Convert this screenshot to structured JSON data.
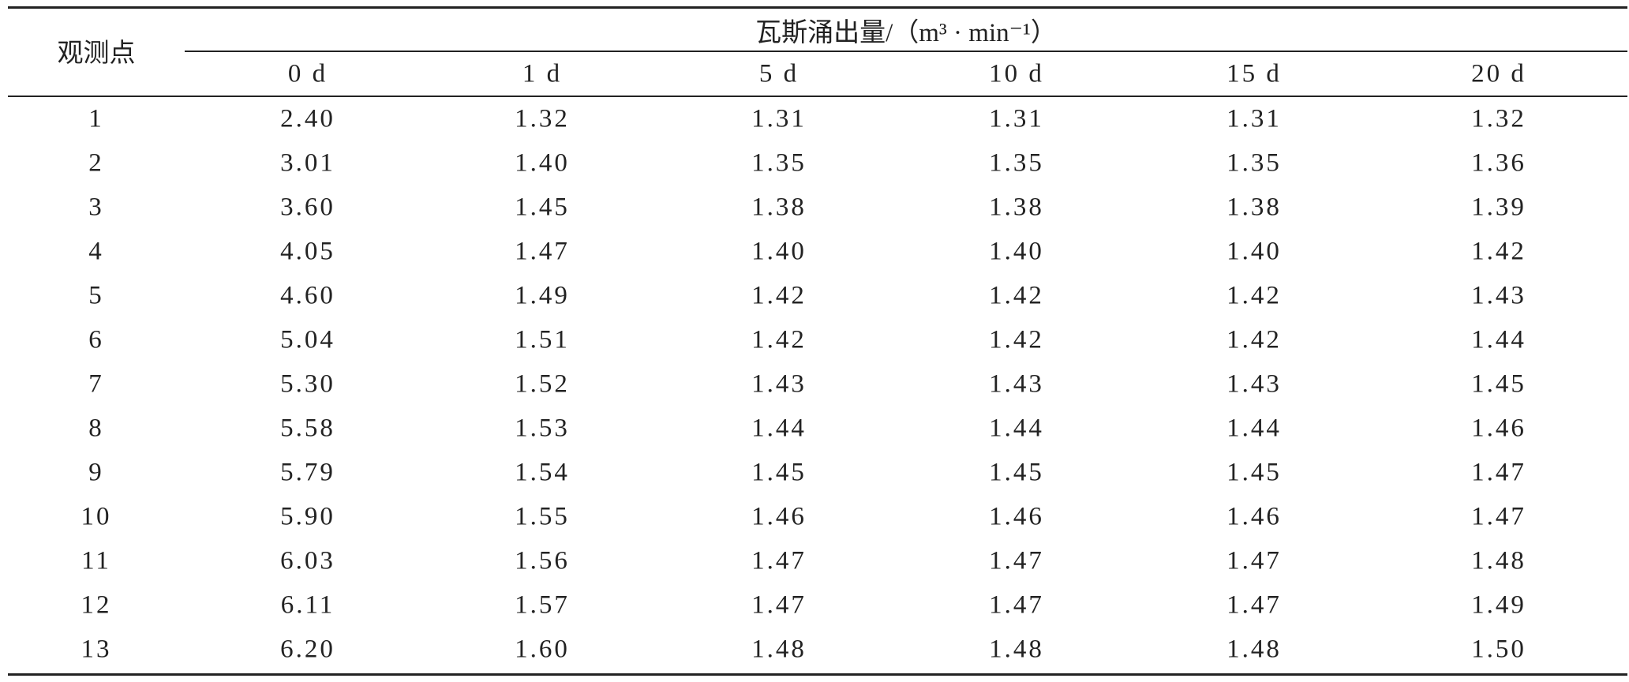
{
  "table": {
    "header": {
      "row_label": "观测点",
      "group": "瓦斯涌出量/（m³ · min⁻¹）",
      "columns": [
        "0 d",
        "1 d",
        "5 d",
        "10 d",
        "15 d",
        "20 d"
      ]
    },
    "rows": [
      [
        "1",
        "2.40",
        "1.32",
        "1.31",
        "1.31",
        "1.31",
        "1.32"
      ],
      [
        "2",
        "3.01",
        "1.40",
        "1.35",
        "1.35",
        "1.35",
        "1.36"
      ],
      [
        "3",
        "3.60",
        "1.45",
        "1.38",
        "1.38",
        "1.38",
        "1.39"
      ],
      [
        "4",
        "4.05",
        "1.47",
        "1.40",
        "1.40",
        "1.40",
        "1.42"
      ],
      [
        "5",
        "4.60",
        "1.49",
        "1.42",
        "1.42",
        "1.42",
        "1.43"
      ],
      [
        "6",
        "5.04",
        "1.51",
        "1.42",
        "1.42",
        "1.42",
        "1.44"
      ],
      [
        "7",
        "5.30",
        "1.52",
        "1.43",
        "1.43",
        "1.43",
        "1.45"
      ],
      [
        "8",
        "5.58",
        "1.53",
        "1.44",
        "1.44",
        "1.44",
        "1.46"
      ],
      [
        "9",
        "5.79",
        "1.54",
        "1.45",
        "1.45",
        "1.45",
        "1.47"
      ],
      [
        "10",
        "5.90",
        "1.55",
        "1.46",
        "1.46",
        "1.46",
        "1.47"
      ],
      [
        "11",
        "6.03",
        "1.56",
        "1.47",
        "1.47",
        "1.47",
        "1.48"
      ],
      [
        "12",
        "6.11",
        "1.57",
        "1.47",
        "1.47",
        "1.47",
        "1.49"
      ],
      [
        "13",
        "6.20",
        "1.60",
        "1.48",
        "1.48",
        "1.48",
        "1.50"
      ]
    ]
  }
}
